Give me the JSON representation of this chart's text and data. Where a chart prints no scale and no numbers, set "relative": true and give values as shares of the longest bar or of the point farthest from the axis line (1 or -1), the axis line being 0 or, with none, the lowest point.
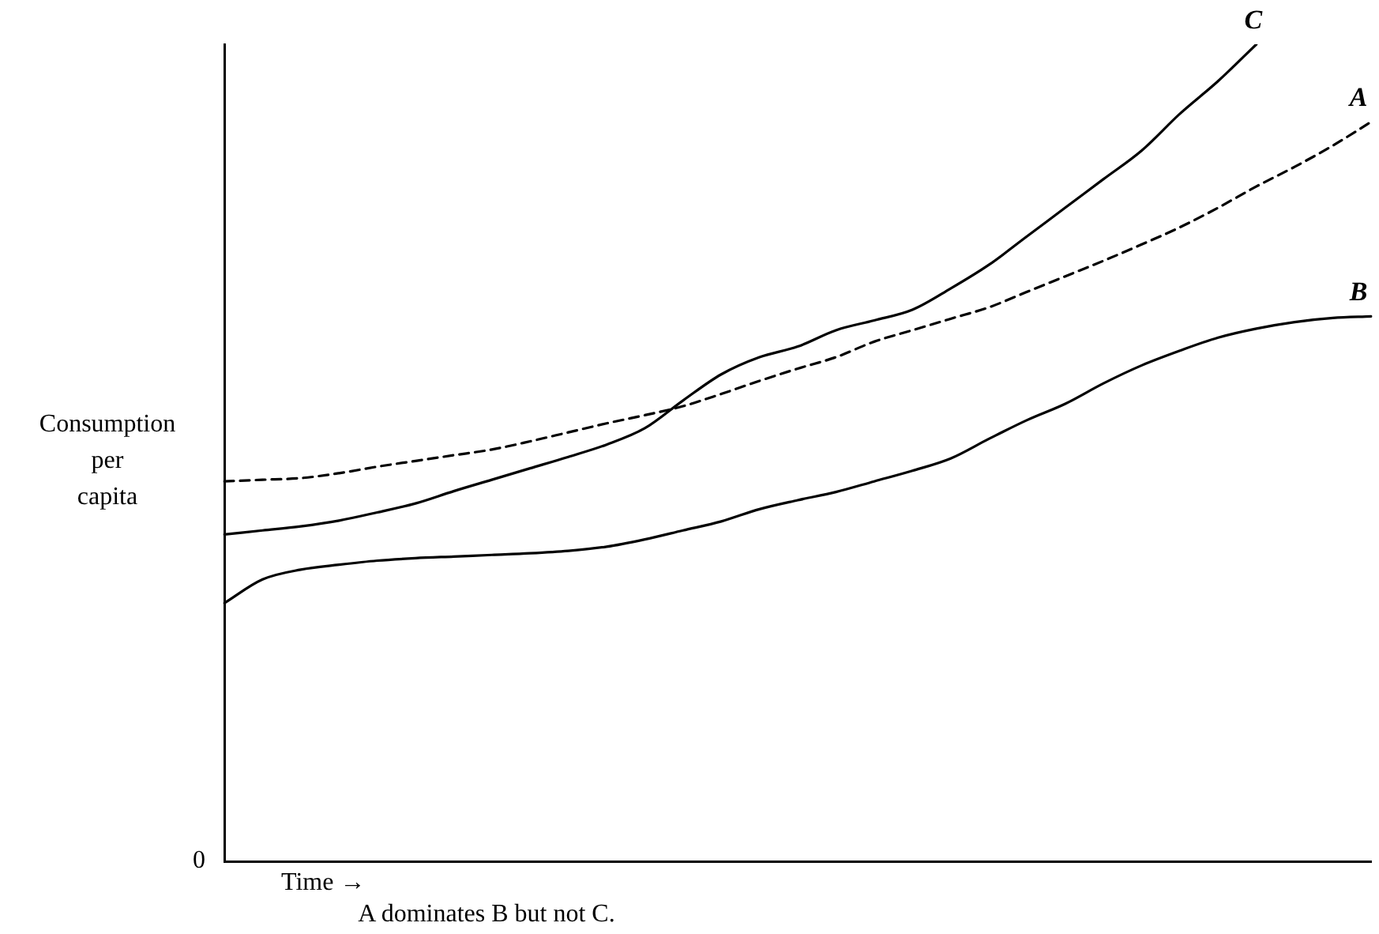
{
  "chart_data": {
    "type": "line",
    "relative": true,
    "xlabel": "Time →",
    "ylabel": "Consumption\nper\ncapita",
    "annotations": [
      "0",
      "A dominates B but not C."
    ],
    "grid": false,
    "legend": false,
    "marker": "none",
    "categories": [
      null,
      null,
      null,
      null,
      null,
      null,
      null,
      null,
      null,
      null,
      null,
      null,
      null,
      null,
      null,
      null,
      null,
      null,
      null,
      null,
      null,
      null,
      null,
      null,
      null,
      null,
      null,
      null,
      null,
      null,
      null
    ],
    "series": [
      {
        "name": "C",
        "color": "#000000",
        "line_style": "solid",
        "values": [
          0.4,
          0.405,
          0.41,
          0.417,
          0.427,
          0.438,
          0.453,
          0.467,
          0.481,
          0.495,
          0.51,
          0.53,
          0.564,
          0.596,
          0.617,
          0.63,
          0.65,
          0.662,
          0.675,
          0.701,
          0.73,
          0.765,
          0.8,
          0.835,
          0.87,
          0.915,
          0.955,
          1.0,
          null,
          null,
          null
        ]
      },
      {
        "name": "A",
        "color": "#000000",
        "line_style": "dashed",
        "values": [
          0.465,
          0.467,
          0.469,
          0.475,
          0.483,
          0.49,
          0.497,
          0.504,
          0.514,
          0.525,
          0.536,
          0.546,
          0.557,
          0.572,
          0.588,
          0.603,
          0.617,
          0.636,
          0.65,
          0.664,
          0.678,
          0.697,
          0.716,
          0.735,
          0.755,
          0.776,
          0.8,
          0.826,
          0.85,
          0.876,
          0.905
        ]
      },
      {
        "name": "B",
        "color": "#000000",
        "line_style": "solid",
        "values": [
          0.316,
          0.345,
          0.357,
          0.363,
          0.368,
          0.371,
          0.373,
          0.375,
          0.377,
          0.38,
          0.385,
          0.394,
          0.405,
          0.416,
          0.431,
          0.442,
          0.452,
          0.465,
          0.478,
          0.493,
          0.517,
          0.54,
          0.56,
          0.585,
          0.607,
          0.625,
          0.641,
          0.652,
          0.66,
          0.665,
          0.667
        ]
      }
    ]
  }
}
